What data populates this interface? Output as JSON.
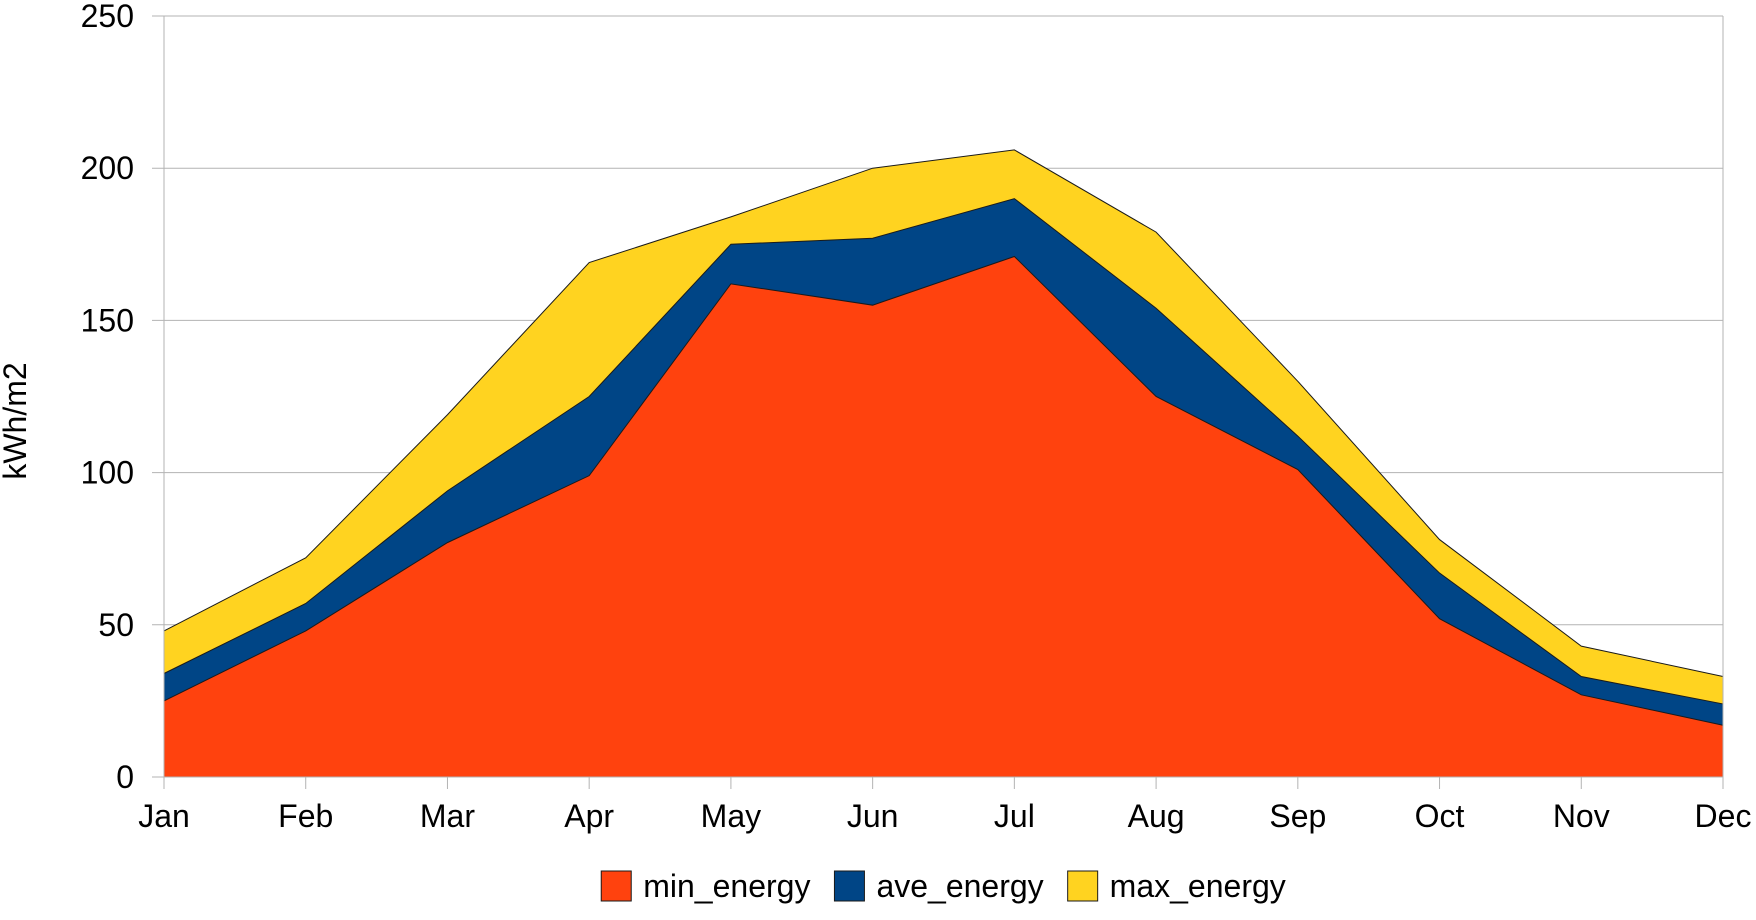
{
  "chart_data": {
    "type": "area",
    "stacked": false,
    "title": "",
    "xlabel": "",
    "ylabel": "kWh/m2",
    "categories": [
      "Jan",
      "Feb",
      "Mar",
      "Apr",
      "May",
      "Jun",
      "Jul",
      "Aug",
      "Sep",
      "Oct",
      "Nov",
      "Dec"
    ],
    "ylim": [
      0,
      250
    ],
    "yticks": [
      "0",
      "50",
      "100",
      "150",
      "200",
      "250"
    ],
    "grid": "horizontal",
    "legend_position": "bottom",
    "series": [
      {
        "name": "max_energy",
        "color": "#ffd320",
        "values": [
          48,
          72,
          119,
          169,
          184,
          200,
          206,
          179,
          130,
          78,
          43,
          33
        ]
      },
      {
        "name": "ave_energy",
        "color": "#004586",
        "values": [
          34,
          57,
          94,
          125,
          175,
          177,
          190,
          154,
          112,
          67,
          33,
          24
        ]
      },
      {
        "name": "min_energy",
        "color": "#ff420e",
        "values": [
          25,
          48,
          77,
          99,
          162,
          155,
          171,
          125,
          101,
          52,
          27,
          17
        ]
      }
    ],
    "legend_order": [
      "min_energy",
      "ave_energy",
      "max_energy"
    ]
  }
}
